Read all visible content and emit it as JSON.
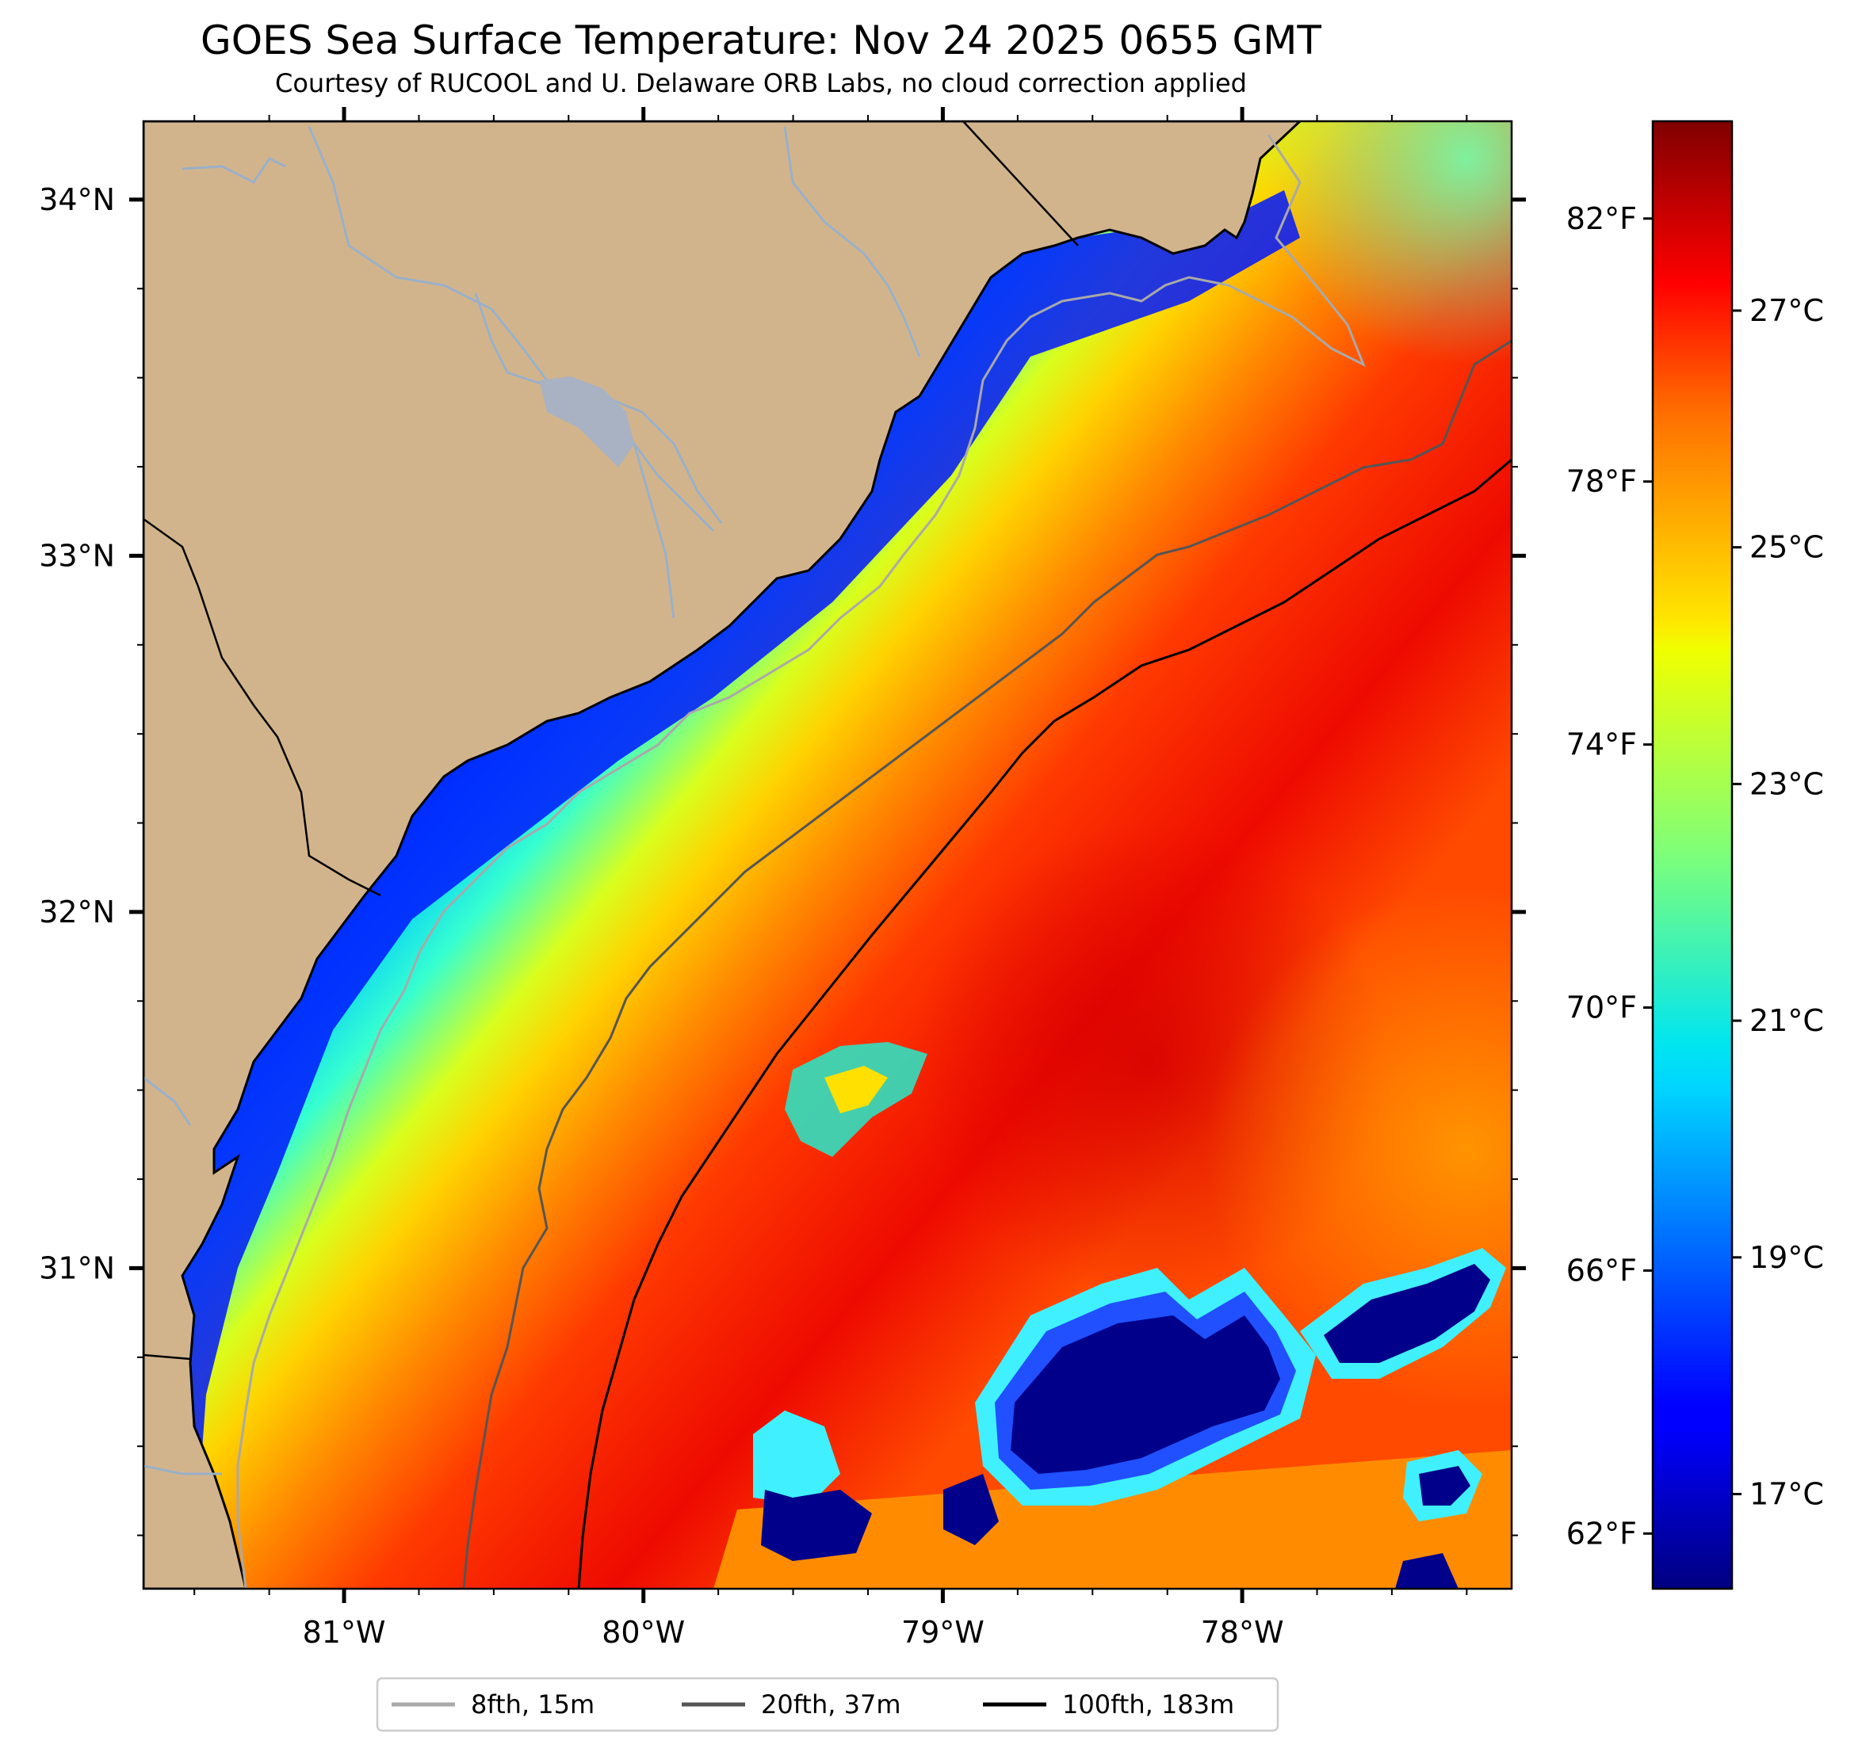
{
  "title": "GOES Sea Surface Temperature: Nov 24 2025 0655 GMT",
  "subtitle": "Courtesy of RUCOOL and U. Delaware ORB Labs, no cloud correction applied",
  "map": {
    "lon_range": [
      -81.67,
      -77.1
    ],
    "lat_range": [
      30.1,
      34.22
    ],
    "lon_ticks": [
      {
        "value": -81,
        "label": "81°W"
      },
      {
        "value": -80,
        "label": "80°W"
      },
      {
        "value": -79,
        "label": "79°W"
      },
      {
        "value": -78,
        "label": "78°W"
      }
    ],
    "lat_ticks": [
      {
        "value": 34,
        "label": "34°N"
      },
      {
        "value": 33,
        "label": "33°N"
      },
      {
        "value": 32,
        "label": "32°N"
      },
      {
        "value": 31,
        "label": "31°N"
      }
    ],
    "colors": {
      "land": "#d2b48c",
      "coastline": "#000000",
      "rivers": "#9ab0c8",
      "contour_8fth": "#a9a9a9",
      "contour_20fth": "#555555",
      "contour_100fth": "#000000"
    }
  },
  "colorbar": {
    "colormap": "jet",
    "celsius_range": [
      16.2,
      28.6
    ],
    "fahrenheit_ticks": [
      {
        "value": 62,
        "label": "62°F"
      },
      {
        "value": 66,
        "label": "66°F"
      },
      {
        "value": 70,
        "label": "70°F"
      },
      {
        "value": 74,
        "label": "74°F"
      },
      {
        "value": 78,
        "label": "78°F"
      },
      {
        "value": 82,
        "label": "82°F"
      }
    ],
    "celsius_ticks": [
      {
        "value": 17,
        "label": "17°C"
      },
      {
        "value": 19,
        "label": "19°C"
      },
      {
        "value": 21,
        "label": "21°C"
      },
      {
        "value": 23,
        "label": "23°C"
      },
      {
        "value": 25,
        "label": "25°C"
      },
      {
        "value": 27,
        "label": "27°C"
      }
    ]
  },
  "legend": {
    "position": "bottom-center",
    "items": [
      {
        "label": "8fth, 15m",
        "color": "#a9a9a9"
      },
      {
        "label": "20fth, 37m",
        "color": "#555555"
      },
      {
        "label": "100fth, 183m",
        "color": "#000000"
      }
    ]
  }
}
